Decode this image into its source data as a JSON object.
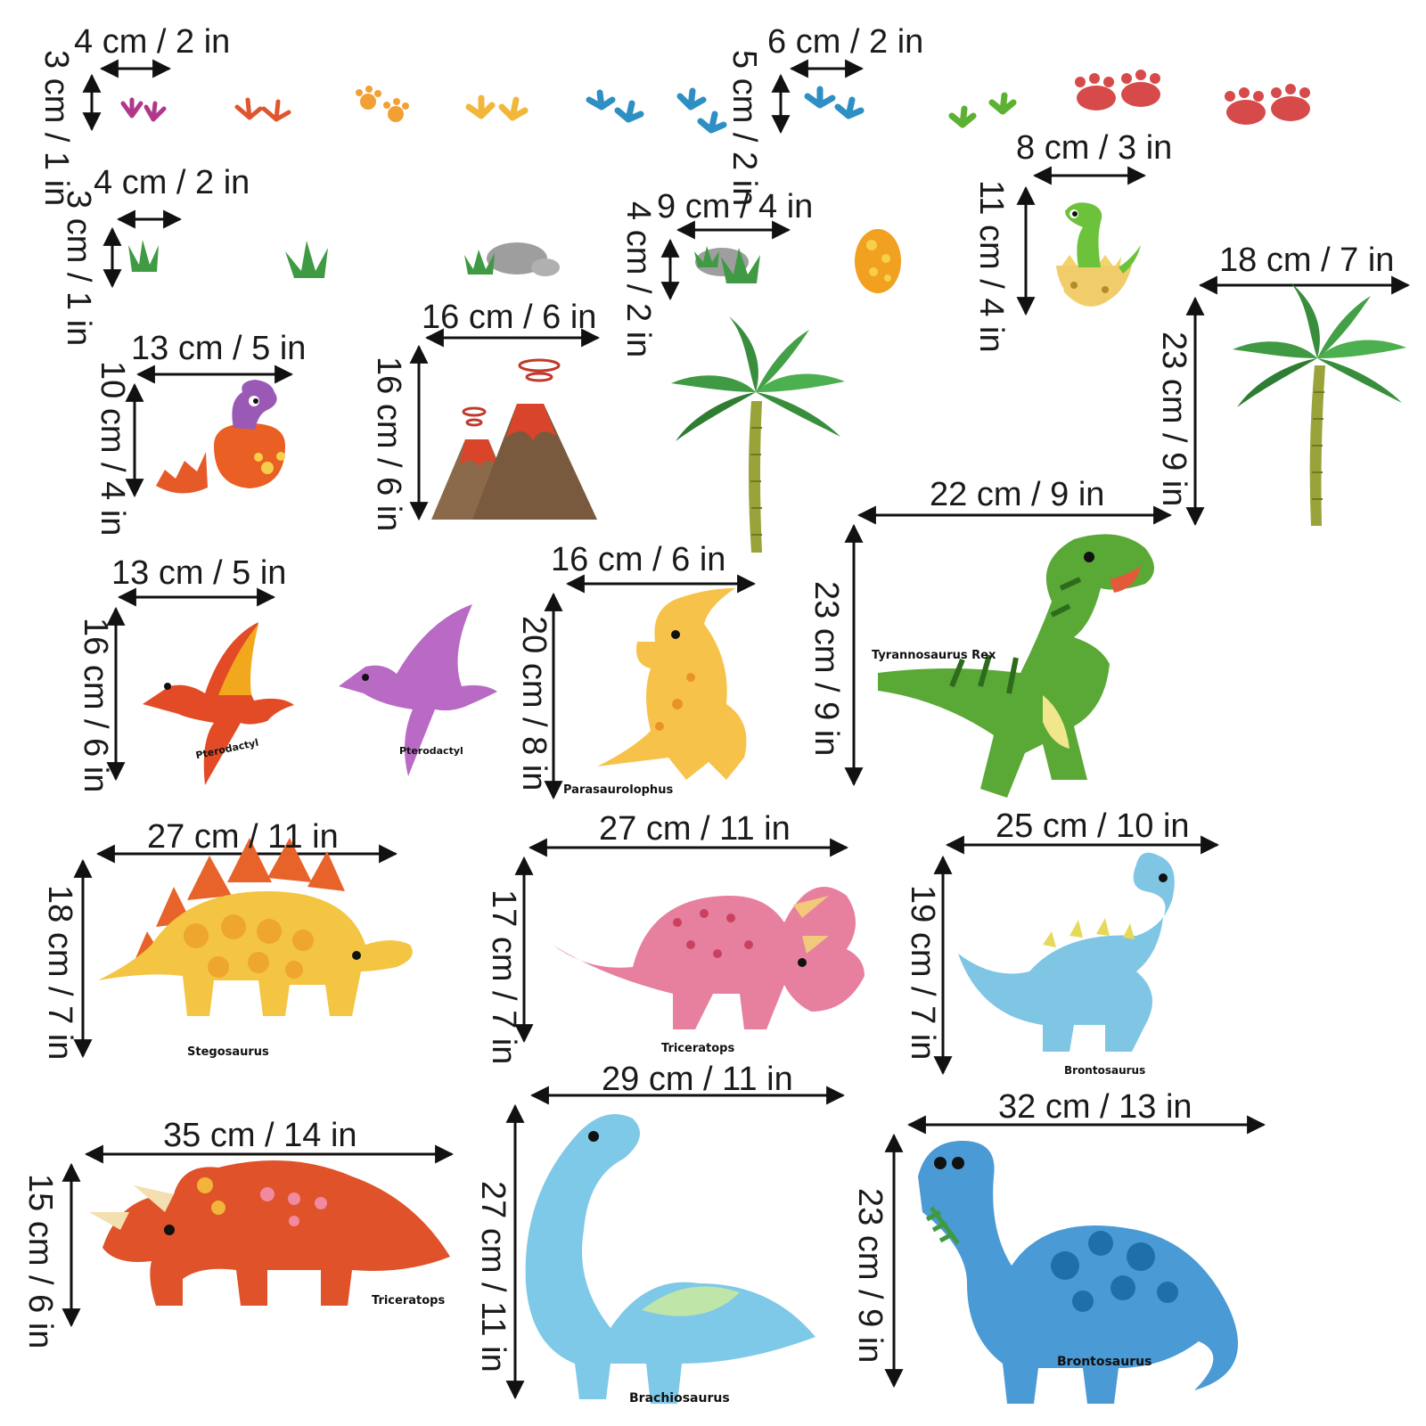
{
  "palette": {
    "arrow": "#111111",
    "leaf": "#3f9a43",
    "trunk": "#9aa33a",
    "lava": "#d9452a",
    "rex": "#5aa937",
    "brachio": "#7ec8e8",
    "bronto": "#4a9ad6",
    "trike_red": "#e0522a",
    "trike_pink": "#e77f9e",
    "stego": "#f4c542"
  },
  "items": {
    "footprints_small": {
      "width": "4 cm / 2 in",
      "height": "3 cm / 1 in"
    },
    "footprints_large": {
      "width": "6 cm / 2 in",
      "height": "5 cm / 2 in"
    },
    "grass": {
      "width": "4 cm / 2 in",
      "height": "3 cm / 1 in"
    },
    "rock_grass": {
      "width": "9 cm / 4 in",
      "height": "4 cm / 2 in"
    },
    "green_hatchling": {
      "width": "8 cm / 3 in",
      "height": "11 cm / 4 in"
    },
    "palm_tree": {
      "width": "18 cm / 7 in",
      "height": "23 cm / 9 in"
    },
    "purple_hatchling": {
      "width": "13 cm / 5 in",
      "height": "10 cm / 4 in"
    },
    "volcano": {
      "width": "16 cm / 6 in",
      "height": "16 cm / 6 in"
    },
    "tyrannosaurus": {
      "name": "Tyrannosaurus Rex",
      "width": "22 cm / 9 in",
      "height": "23 cm / 9 in"
    },
    "pterodactyl": {
      "name": "Pterodactyl",
      "width": "13 cm / 5 in",
      "height": "16 cm / 6 in"
    },
    "parasaurolophus": {
      "name": "Parasaurolophus",
      "width": "16 cm / 6 in",
      "height": "20 cm / 8 in"
    },
    "stegosaurus": {
      "name": "Stegosaurus",
      "width": "27 cm / 11 in",
      "height": "18 cm / 7 in"
    },
    "triceratops_pink": {
      "name": "Triceratops",
      "width": "27 cm / 11 in",
      "height": "17 cm / 7 in"
    },
    "brontosaurus_light": {
      "name": "Brontosaurus",
      "width": "25 cm / 10 in",
      "height": "19 cm / 7 in"
    },
    "triceratops_red": {
      "name": "Triceratops",
      "width": "35 cm / 14 in",
      "height": "15 cm / 6 in"
    },
    "brachiosaurus": {
      "name": "Brachiosaurus",
      "width": "29 cm / 11 in",
      "height": "27 cm / 11 in"
    },
    "brontosaurus_dark": {
      "name": "Brontosaurus",
      "width": "32 cm / 13 in",
      "height": "23 cm / 9 in"
    }
  }
}
